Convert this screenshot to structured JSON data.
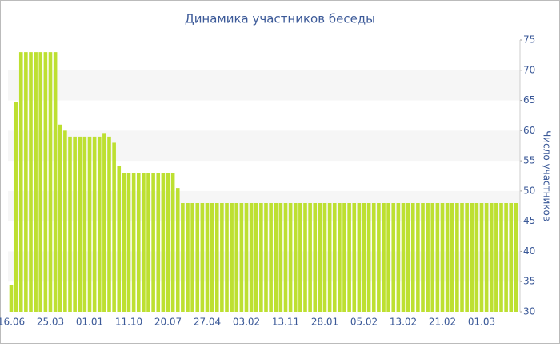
{
  "chart_data": {
    "type": "bar",
    "title": "Динамика участников беседы",
    "y_axis_label": "Число участников",
    "categories": [
      "16.06",
      null,
      null,
      null,
      null,
      null,
      null,
      null,
      "25.03",
      null,
      null,
      null,
      null,
      null,
      null,
      null,
      "01.01",
      null,
      null,
      null,
      null,
      null,
      null,
      null,
      "11.10",
      null,
      null,
      null,
      null,
      null,
      null,
      null,
      "20.07",
      null,
      null,
      null,
      null,
      null,
      null,
      null,
      "27.04",
      null,
      null,
      null,
      null,
      null,
      null,
      null,
      "03.02",
      null,
      null,
      null,
      null,
      null,
      null,
      null,
      "13.11",
      null,
      null,
      null,
      null,
      null,
      null,
      null,
      "28.01",
      null,
      null,
      null,
      null,
      null,
      null,
      null,
      "05.02",
      null,
      null,
      null,
      null,
      null,
      null,
      null,
      "13.02",
      null,
      null,
      null,
      null,
      null,
      null,
      null,
      "21.02",
      null,
      null,
      null,
      null,
      null,
      null,
      null,
      "01.03",
      null,
      null,
      null,
      null,
      null,
      null,
      null
    ],
    "values": [
      34.5,
      64.8,
      73,
      73,
      73,
      73,
      73,
      73,
      73,
      73,
      61,
      60,
      59,
      59,
      59,
      59,
      59,
      59,
      59,
      59.6,
      59,
      58,
      54.2,
      53,
      53,
      53,
      53,
      53,
      53,
      53,
      53,
      53,
      53,
      53,
      50.5,
      48,
      48,
      48,
      48,
      48,
      48,
      48,
      48,
      48,
      48,
      48,
      48,
      48,
      48,
      48,
      48,
      48,
      48,
      48,
      48,
      48,
      48,
      48,
      48,
      48,
      48,
      48,
      48,
      48,
      48,
      48,
      48,
      48,
      48,
      48,
      48,
      48,
      48,
      48,
      48,
      48,
      48,
      48,
      48,
      48,
      48,
      48,
      48,
      48,
      48,
      48,
      48,
      48,
      48,
      48,
      48,
      48,
      48,
      48,
      48,
      48,
      48,
      48,
      48,
      48,
      48,
      48,
      48,
      48
    ],
    "color": "#bde031",
    "ylim": [
      30,
      75
    ],
    "yticks": [
      30,
      35,
      40,
      45,
      50,
      55,
      60,
      65,
      70,
      75
    ],
    "grid": true
  }
}
